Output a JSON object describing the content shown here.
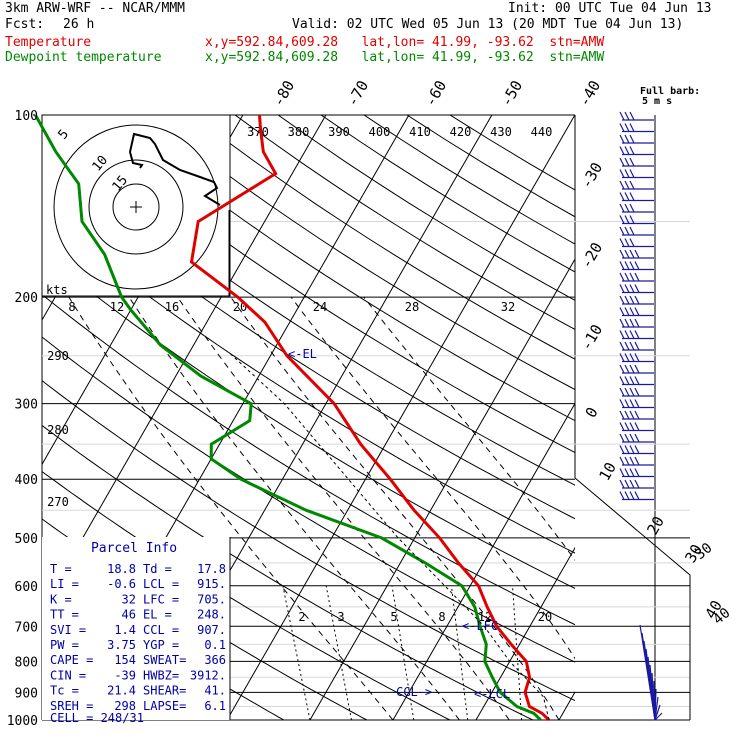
{
  "header": {
    "model": "3km ARW-WRF -- NCAR/MMM",
    "init": "Init: 00 UTC Tue 04 Jun 13",
    "fcst_label": "Fcst:",
    "fcst_value": "26 h",
    "valid": "Valid: 02 UTC Wed 05 Jun 13 (20 MDT Tue 04 Jun 13)",
    "temp_label": "Temperature",
    "dew_label": "Dewpoint temperature",
    "loc_line": "x,y=592.84,609.28   lat,lon= 41.99, -93.62  stn=AMW"
  },
  "colors": {
    "temperature": "#e00000",
    "dewpoint": "#008800",
    "barbs": "#1a1aa0",
    "parcel": "#0000aa"
  },
  "chart_data": {
    "type": "line",
    "yscale": "log-pressure",
    "pressure_ticks": [
      100,
      200,
      300,
      400,
      500,
      600,
      700,
      800,
      900,
      1000
    ],
    "temp_iso_labels": [
      "-80",
      "-70",
      "-60",
      "-50",
      "-40",
      "-30",
      "-20",
      "-10",
      "0",
      "10",
      "20",
      "30",
      "40"
    ],
    "theta_labels_top": [
      "370",
      "380",
      "390",
      "400",
      "410",
      "420",
      "430",
      "440"
    ],
    "theta_labels_side": [
      "290",
      "280",
      "270"
    ],
    "mixing_ratio_labels": [
      "2",
      "3",
      "5",
      "8",
      "12",
      "20"
    ],
    "wind_labels_top": [
      "8",
      "12",
      "16",
      "20",
      "24",
      "28",
      "32"
    ],
    "series": [
      {
        "name": "Temperature",
        "points": [
          [
            1000,
            18.8
          ],
          [
            975,
            17.5
          ],
          [
            950,
            15.5
          ],
          [
            900,
            14
          ],
          [
            850,
            13.5
          ],
          [
            800,
            12
          ],
          [
            750,
            9
          ],
          [
            700,
            6
          ],
          [
            650,
            3.5
          ],
          [
            600,
            1
          ],
          [
            550,
            -3
          ],
          [
            500,
            -7
          ],
          [
            450,
            -12
          ],
          [
            400,
            -17
          ],
          [
            350,
            -23
          ],
          [
            300,
            -29
          ],
          [
            250,
            -38
          ],
          [
            220,
            -43
          ],
          [
            200,
            -48
          ],
          [
            175,
            -56
          ],
          [
            150,
            -58
          ],
          [
            125,
            -52
          ],
          [
            115,
            -55
          ],
          [
            105,
            -57
          ],
          [
            100,
            -58
          ]
        ]
      },
      {
        "name": "Dewpoint temperature",
        "points": [
          [
            1000,
            17.8
          ],
          [
            975,
            16.5
          ],
          [
            950,
            14
          ],
          [
            900,
            11
          ],
          [
            850,
            9
          ],
          [
            800,
            7
          ],
          [
            750,
            6
          ],
          [
            700,
            4
          ],
          [
            650,
            2
          ],
          [
            600,
            -1
          ],
          [
            550,
            -7
          ],
          [
            500,
            -14
          ],
          [
            450,
            -25
          ],
          [
            400,
            -35
          ],
          [
            370,
            -40
          ],
          [
            350,
            -41
          ],
          [
            320,
            -38
          ],
          [
            300,
            -39
          ],
          [
            270,
            -47
          ],
          [
            240,
            -54
          ],
          [
            210,
            -60
          ],
          [
            200,
            -62
          ],
          [
            170,
            -67
          ],
          [
            150,
            -72
          ],
          [
            130,
            -75
          ],
          [
            115,
            -80
          ],
          [
            100,
            -85
          ]
        ]
      }
    ]
  },
  "hodograph": {
    "units": "kts",
    "ring_labels": [
      "5",
      "10",
      "15"
    ],
    "speed_labels": [
      "8",
      "12",
      "16",
      "20",
      "24",
      "28",
      "32"
    ]
  },
  "wind_barbs": {
    "title": "Full barb:",
    "units": "5 m s",
    "speed_labels": [
      "30",
      "40"
    ]
  },
  "parcel_info": {
    "title": "Parcel Info",
    "rows": [
      [
        "T  =",
        "18.8",
        "Td =",
        "17.8"
      ],
      [
        "LI =",
        "-0.6",
        "LCL =",
        "915."
      ],
      [
        "K  =",
        "32",
        "LFC =",
        "705."
      ],
      [
        "TT =",
        "46",
        "EL =",
        "248."
      ],
      [
        "SVI =",
        "1.4",
        "CCL =",
        "907."
      ],
      [
        "PW =",
        "3.75",
        "YGP =",
        "0.1"
      ],
      [
        "CAPE =",
        "154",
        "SWEAT=",
        "366"
      ],
      [
        "CIN =",
        "-39",
        "HWBZ=",
        "3912."
      ],
      [
        "Tc =",
        "21.4",
        "SHEAR=",
        "41."
      ],
      [
        "SREH =",
        "298",
        "LAPSE=",
        "6.1"
      ]
    ],
    "cell": "CELL = 248/31"
  },
  "markers": {
    "el": "<-EL",
    "lfc": "<-LFC",
    "ccl": "CCL->",
    "lcl": "<-LCL"
  }
}
